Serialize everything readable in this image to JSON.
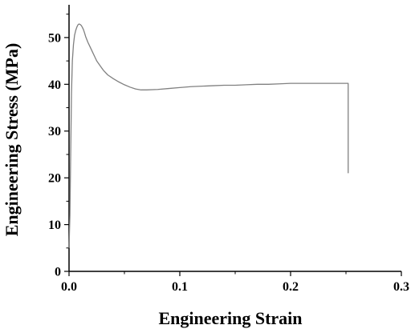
{
  "chart_data": {
    "type": "line",
    "title": "",
    "xlabel": "Engineering Strain",
    "ylabel": "Engineering Stress (MPa)",
    "xlim": [
      0.0,
      0.3
    ],
    "ylim": [
      0,
      57
    ],
    "x_ticks": [
      0.0,
      0.1,
      0.2,
      0.3
    ],
    "x_tick_labels": [
      "0.0",
      "0.1",
      "0.2",
      "0.3"
    ],
    "y_ticks": [
      0,
      10,
      20,
      30,
      40,
      50
    ],
    "y_tick_labels": [
      "0",
      "10",
      "20",
      "30",
      "40",
      "50"
    ],
    "grid": false,
    "legend": "none",
    "line_color": "#808080",
    "series": [
      {
        "x": [
          0.0,
          0.0008,
          0.0015,
          0.0022,
          0.003,
          0.004,
          0.005,
          0.006,
          0.007,
          0.008,
          0.009,
          0.01,
          0.011,
          0.012,
          0.013,
          0.014,
          0.015,
          0.017,
          0.019,
          0.021,
          0.023,
          0.025,
          0.028,
          0.031,
          0.035,
          0.04,
          0.045,
          0.05,
          0.055,
          0.06,
          0.065,
          0.07,
          0.08,
          0.09,
          0.1,
          0.11,
          0.12,
          0.13,
          0.14,
          0.15,
          0.16,
          0.17,
          0.18,
          0.19,
          0.2,
          0.21,
          0.22,
          0.23,
          0.24,
          0.252,
          0.252
        ],
        "y": [
          5.0,
          12.0,
          25.0,
          38.0,
          45.0,
          48.5,
          50.5,
          51.5,
          52.2,
          52.7,
          52.9,
          52.8,
          52.6,
          52.2,
          51.7,
          51.0,
          50.2,
          49.0,
          48.0,
          47.0,
          46.0,
          45.0,
          44.0,
          43.0,
          42.0,
          41.2,
          40.5,
          39.9,
          39.4,
          39.0,
          38.8,
          38.8,
          38.9,
          39.1,
          39.3,
          39.5,
          39.6,
          39.7,
          39.8,
          39.8,
          39.9,
          40.0,
          40.0,
          40.1,
          40.2,
          40.2,
          40.2,
          40.2,
          40.2,
          40.2,
          21.0
        ]
      }
    ]
  }
}
